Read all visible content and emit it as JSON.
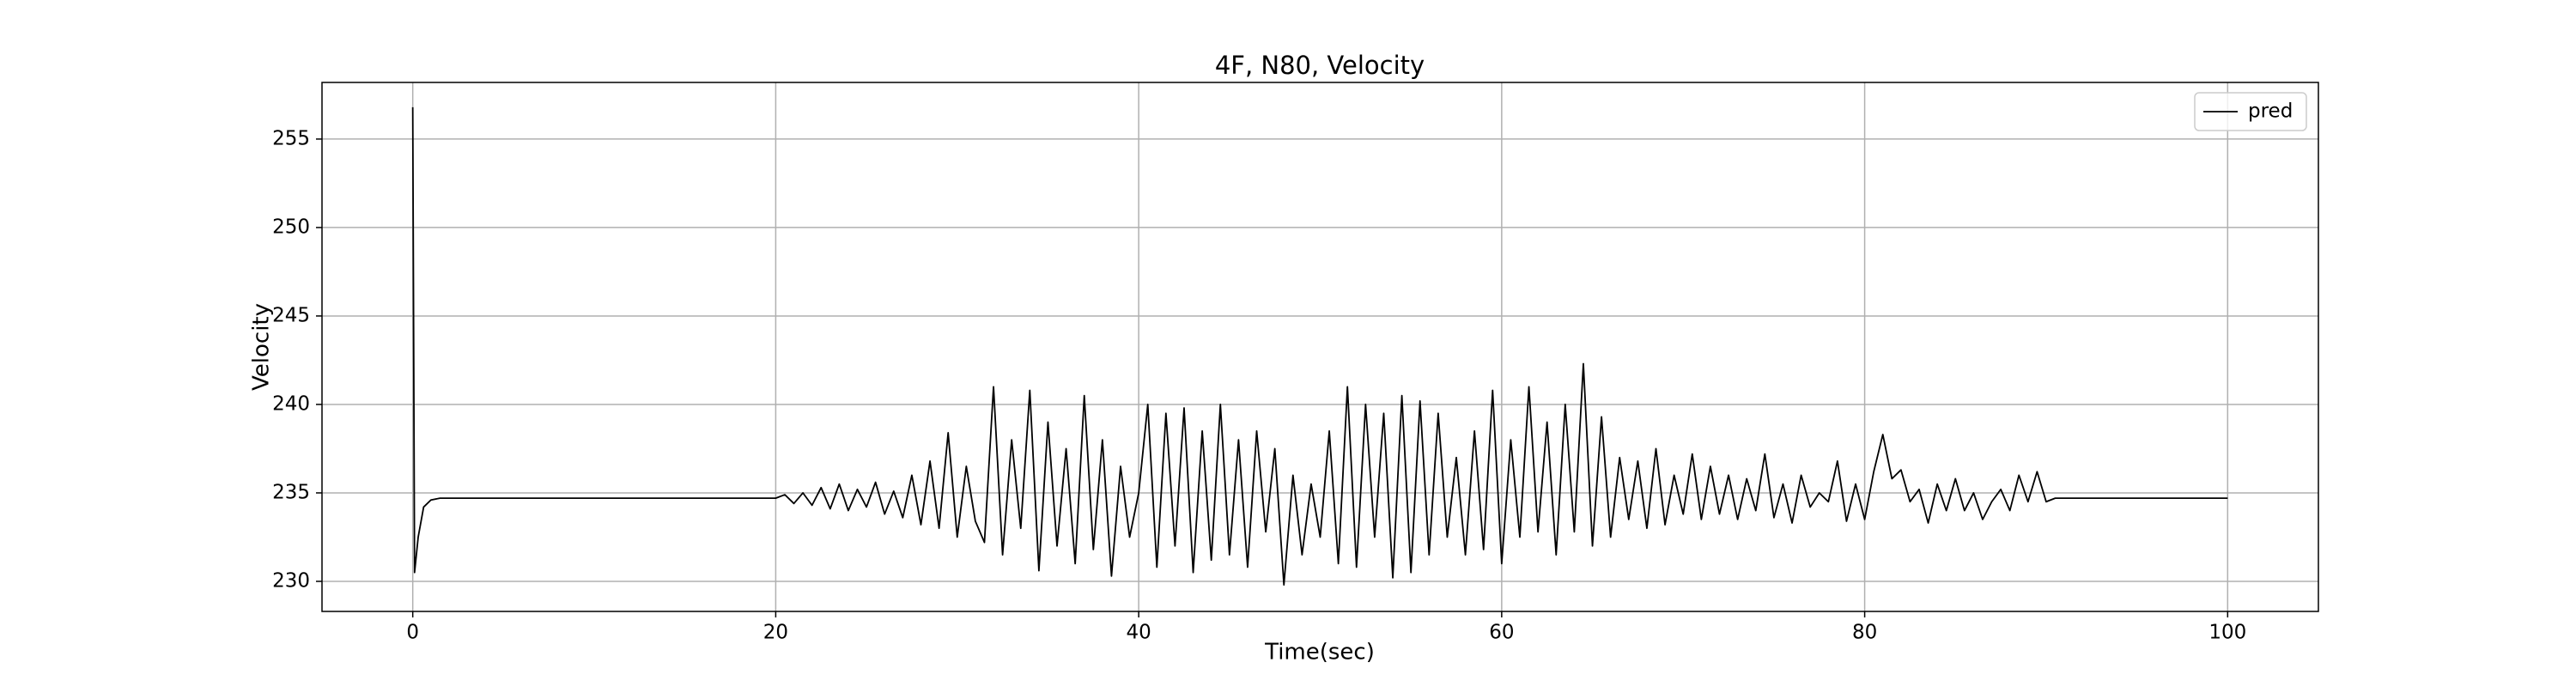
{
  "chart_data": {
    "type": "line",
    "title": "4F, N80, Velocity",
    "xlabel": "Time(sec)",
    "ylabel": "Velocity",
    "x": [
      0,
      0.1,
      0.3,
      0.6,
      1,
      1.5,
      2,
      2.5,
      3,
      3.5,
      4,
      4.5,
      5,
      5.5,
      6,
      6.5,
      7,
      7.5,
      8,
      8.5,
      9,
      9.5,
      10,
      10.5,
      11,
      11.5,
      12,
      12.5,
      13,
      13.5,
      14,
      14.5,
      15,
      15.5,
      16,
      16.5,
      17,
      17.5,
      18,
      18.5,
      19,
      19.5,
      20,
      20.5,
      21,
      21.5,
      22,
      22.5,
      23,
      23.5,
      24,
      24.5,
      25,
      25.5,
      26,
      26.5,
      27,
      27.5,
      28,
      28.5,
      29,
      29.5,
      30,
      30.5,
      31,
      31.5,
      32,
      32.5,
      33,
      33.5,
      34,
      34.5,
      35,
      35.5,
      36,
      36.5,
      37,
      37.5,
      38,
      38.5,
      39,
      39.5,
      40,
      40.5,
      41,
      41.5,
      42,
      42.5,
      43,
      43.5,
      44,
      44.5,
      45,
      45.5,
      46,
      46.5,
      47,
      47.5,
      48,
      48.5,
      49,
      49.5,
      50,
      50.5,
      51,
      51.5,
      52,
      52.5,
      53,
      53.5,
      54,
      54.5,
      55,
      55.5,
      56,
      56.5,
      57,
      57.5,
      58,
      58.5,
      59,
      59.5,
      60,
      60.5,
      61,
      61.5,
      62,
      62.5,
      63,
      63.5,
      64,
      64.5,
      65,
      65.5,
      66,
      66.5,
      67,
      67.5,
      68,
      68.5,
      69,
      69.5,
      70,
      70.5,
      71,
      71.5,
      72,
      72.5,
      73,
      73.5,
      74,
      74.5,
      75,
      75.5,
      76,
      76.5,
      77,
      77.5,
      78,
      78.5,
      79,
      79.5,
      80,
      80.5,
      81,
      81.5,
      82,
      82.5,
      83,
      83.5,
      84,
      84.5,
      85,
      85.5,
      86,
      86.5,
      87,
      87.5,
      88,
      88.5,
      89,
      89.5,
      90,
      90.5,
      91,
      91.5,
      92,
      92.5,
      93,
      93.5,
      94,
      94.5,
      95,
      95.5,
      96,
      96.5,
      97,
      97.5,
      98,
      98.5,
      99,
      99.5,
      100
    ],
    "series": [
      {
        "name": "pred",
        "color": "#000000",
        "values": [
          256.8,
          230.5,
          232.5,
          234.2,
          234.6,
          234.7,
          234.7,
          234.7,
          234.7,
          234.7,
          234.7,
          234.7,
          234.7,
          234.7,
          234.7,
          234.7,
          234.7,
          234.7,
          234.7,
          234.7,
          234.7,
          234.7,
          234.7,
          234.7,
          234.7,
          234.7,
          234.7,
          234.7,
          234.7,
          234.7,
          234.7,
          234.7,
          234.7,
          234.7,
          234.7,
          234.7,
          234.7,
          234.7,
          234.7,
          234.7,
          234.7,
          234.7,
          234.7,
          234.9,
          234.4,
          235.0,
          234.3,
          235.3,
          234.1,
          235.5,
          234.0,
          235.2,
          234.2,
          235.6,
          233.8,
          235.1,
          233.6,
          236.0,
          233.2,
          236.8,
          233.0,
          238.4,
          232.5,
          236.5,
          233.4,
          232.2,
          241.0,
          231.5,
          238.0,
          233.0,
          240.8,
          230.6,
          239.0,
          232.0,
          237.5,
          231.0,
          240.5,
          231.8,
          238.0,
          230.3,
          236.5,
          232.5,
          235.0,
          240.0,
          230.8,
          239.5,
          232.0,
          239.8,
          230.5,
          238.5,
          231.2,
          240.0,
          231.5,
          238.0,
          230.8,
          238.5,
          232.8,
          237.5,
          229.8,
          236.0,
          231.5,
          235.5,
          232.5,
          238.5,
          231.0,
          241.0,
          230.8,
          240.0,
          232.5,
          239.5,
          230.2,
          240.5,
          230.5,
          240.2,
          231.5,
          239.5,
          232.5,
          237.0,
          231.5,
          238.5,
          231.8,
          240.8,
          231.0,
          238.0,
          232.5,
          241.0,
          232.8,
          239.0,
          231.5,
          240.0,
          232.8,
          242.3,
          232.0,
          239.3,
          232.5,
          237.0,
          233.5,
          236.8,
          233.0,
          237.5,
          233.2,
          236.0,
          233.8,
          237.2,
          233.5,
          236.5,
          233.8,
          236.0,
          233.5,
          235.8,
          234.0,
          237.2,
          233.6,
          235.5,
          233.3,
          236.0,
          234.2,
          235.0,
          234.5,
          236.8,
          233.4,
          235.5,
          233.5,
          236.2,
          238.3,
          235.8,
          236.3,
          234.5,
          235.2,
          233.3,
          235.5,
          234.0,
          235.8,
          234.0,
          235.0,
          233.5,
          234.5,
          235.2,
          234.0,
          236.0,
          234.5,
          236.2,
          234.5,
          234.7,
          234.7,
          234.7,
          234.7,
          234.7,
          234.7,
          234.7,
          234.7,
          234.7,
          234.7,
          234.7,
          234.7,
          234.7,
          234.7,
          234.7,
          234.7,
          234.7,
          234.7,
          234.7,
          234.7
        ]
      }
    ],
    "xlim": [
      -5,
      105
    ],
    "xticks": [
      0,
      20,
      40,
      60,
      80,
      100
    ],
    "ylim": [
      228.3,
      258.2
    ],
    "yticks": [
      230,
      235,
      240,
      245,
      250,
      255
    ],
    "grid": true,
    "legend": "upper right"
  }
}
